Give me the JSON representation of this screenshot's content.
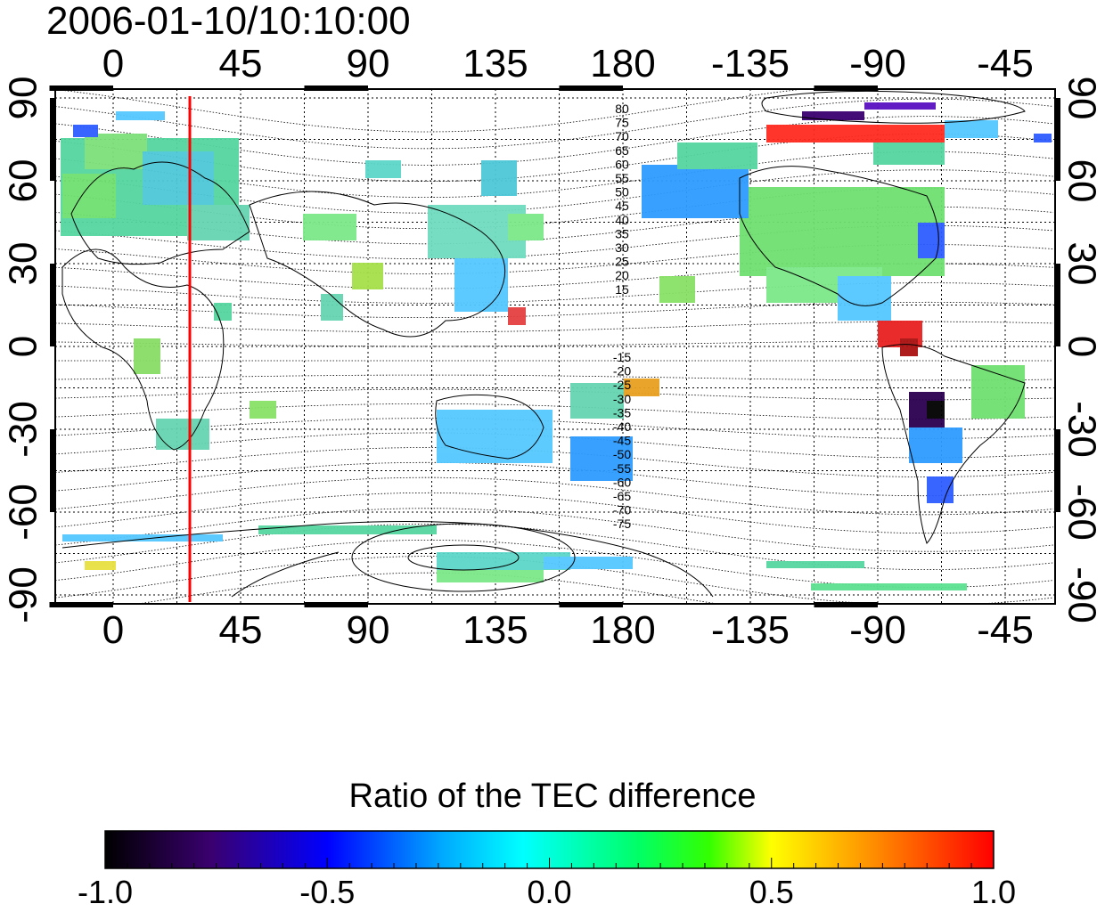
{
  "title": "2006-01-10/10:10:00",
  "x_axis_top": [
    "0",
    "45",
    "90",
    "135",
    "180",
    "-135",
    "-90",
    "-45"
  ],
  "x_axis_bottom": [
    "0",
    "45",
    "90",
    "135",
    "180",
    "-135",
    "-90",
    "-45"
  ],
  "y_axis_left": [
    "90",
    "60",
    "30",
    "0",
    "-30",
    "-60",
    "-90"
  ],
  "y_axis_right": [
    "90",
    "60",
    "30",
    "0",
    "-30",
    "-60",
    "-90"
  ],
  "magnetic_lat_labels_north": [
    "80",
    "75",
    "70",
    "65",
    "60",
    "55",
    "50",
    "45",
    "40",
    "35",
    "30",
    "25",
    "20",
    "15"
  ],
  "magnetic_lat_labels_south": [
    "-15",
    "-20",
    "-25",
    "-30",
    "-35",
    "-40",
    "-45",
    "-50",
    "-55",
    "-60",
    "-65",
    "-70",
    "-75"
  ],
  "colorbar": {
    "label": "Ratio of the TEC difference",
    "ticks": [
      "-1.0",
      "-0.5",
      "0.0",
      "0.5",
      "1.0"
    ],
    "range": [
      -1.0,
      1.0
    ]
  },
  "marker_line": {
    "longitude": 28,
    "color": "#ff0000"
  },
  "colors": {
    "coast": "#000000",
    "grid": "#000000",
    "marker": "#ff0000"
  }
}
